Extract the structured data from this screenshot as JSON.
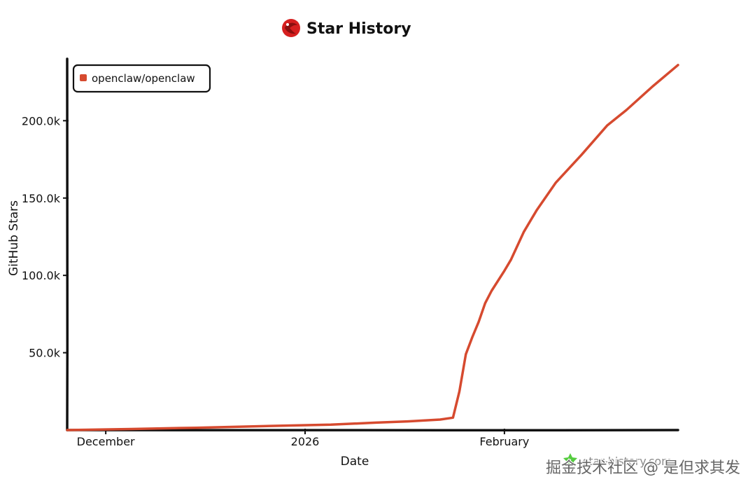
{
  "page": {
    "watermark_brand": "star-history.com",
    "watermark_text": "掘金技术社区 @ 是但求其发"
  },
  "chart_data": {
    "type": "line",
    "title": "Star History",
    "xlabel": "Date",
    "ylabel": "GitHub Stars",
    "x_tick_labels": [
      "December",
      "2026",
      "February"
    ],
    "y_tick_labels": [
      "50.0k",
      "100.0k",
      "150.0k",
      "200.0k"
    ],
    "x_ticks": [
      "2025-12-01",
      "2026-01-01",
      "2026-02-01"
    ],
    "y_ticks": [
      50000,
      100000,
      150000,
      200000
    ],
    "xlim": [
      "2025-11-25",
      "2026-02-28"
    ],
    "ylim": [
      0,
      240000
    ],
    "grid": false,
    "legend": "top-left",
    "series": [
      {
        "name": "openclaw/openclaw",
        "color": "#d64a2f",
        "x": [
          "2025-11-25",
          "2025-12-05",
          "2025-12-15",
          "2025-12-25",
          "2026-01-05",
          "2026-01-12",
          "2026-01-17",
          "2026-01-22",
          "2026-01-24",
          "2026-01-25",
          "2026-01-26",
          "2026-01-27",
          "2026-01-28",
          "2026-01-29",
          "2026-01-30",
          "2026-02-01",
          "2026-02-02",
          "2026-02-04",
          "2026-02-06",
          "2026-02-09",
          "2026-02-13",
          "2026-02-17",
          "2026-02-20",
          "2026-02-24",
          "2026-02-28"
        ],
        "y": [
          0,
          700,
          1500,
          2500,
          3500,
          4800,
          5600,
          6800,
          8000,
          25000,
          49000,
          60000,
          70000,
          82000,
          90000,
          103000,
          110000,
          128000,
          142000,
          160000,
          178000,
          197000,
          207000,
          222000,
          236000
        ]
      }
    ]
  },
  "colors": {
    "axis": "#111111",
    "series": "#d64a2f",
    "logo_red": "#d61f1f"
  },
  "icons": {
    "title_logo": "star-history-logo-icon",
    "watermark_logo": "star-history-watermark-icon",
    "legend_marker": "legend-swatch-icon"
  }
}
